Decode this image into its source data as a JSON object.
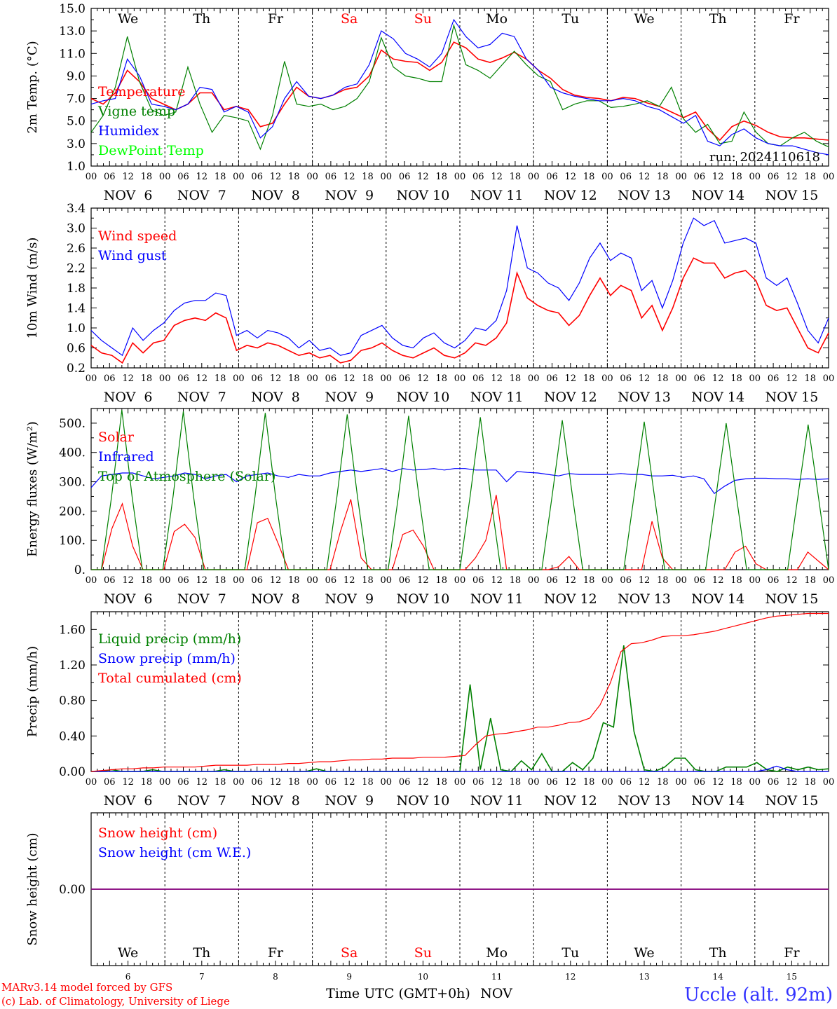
{
  "chart_data": [
    {
      "type": "line",
      "ylabel": "2m Temp. (°C)",
      "ylim": [
        1.0,
        15.0
      ],
      "ytick_labels": [
        "1.0",
        "3.0",
        "5.0",
        "7.0",
        "9.0",
        "11.0",
        "13.0",
        "15.0"
      ],
      "ytick_values": [
        1,
        3,
        5,
        7,
        9,
        11,
        13,
        15
      ],
      "annotation": "run: 2024110618",
      "x_start_hour": 0,
      "x_step_hours": 6,
      "series": [
        {
          "name": "Temperature",
          "color": "#ff0000",
          "values": [
            7.0,
            6.5,
            7.5,
            9.5,
            8.5,
            7.0,
            6.5,
            6.0,
            6.5,
            7.5,
            7.5,
            6.0,
            6.3,
            6.0,
            4.5,
            4.8,
            6.5,
            8.0,
            7.2,
            7.0,
            7.3,
            7.8,
            8.0,
            9.0,
            11.3,
            10.5,
            10.3,
            10.2,
            9.5,
            10.2,
            12.0,
            11.5,
            10.5,
            10.2,
            10.6,
            11.1,
            10.5,
            9.5,
            8.8,
            7.8,
            7.3,
            7.1,
            7.0,
            6.8,
            7.1,
            7.0,
            6.6,
            6.3,
            5.8,
            5.3,
            5.8,
            4.3,
            3.3,
            4.5,
            5.0,
            4.6,
            4.0,
            3.6,
            3.5,
            3.5,
            3.4,
            3.3
          ]
        },
        {
          "name": "Vigne temp",
          "color": "#008000",
          "values": [
            4.0,
            5.5,
            8.0,
            12.5,
            8.5,
            6.0,
            5.5,
            5.8,
            9.8,
            6.5,
            4.0,
            5.5,
            5.3,
            5.0,
            2.5,
            5.5,
            10.3,
            6.5,
            6.3,
            6.5,
            6.0,
            6.3,
            7.0,
            8.5,
            12.4,
            9.8,
            9.0,
            8.8,
            8.5,
            8.5,
            13.5,
            10.0,
            9.5,
            8.8,
            10.0,
            11.2,
            10.0,
            9.0,
            8.5,
            6.0,
            6.5,
            6.8,
            6.8,
            6.2,
            6.3,
            6.5,
            6.8,
            6.3,
            8.0,
            5.2,
            4.0,
            4.7,
            3.0,
            3.2,
            5.8,
            4.0,
            3.0,
            2.8,
            3.5,
            4.0,
            3.2,
            2.7
          ]
        },
        {
          "name": "Humidex",
          "color": "#0000ff",
          "values": [
            6.5,
            6.8,
            7.0,
            10.5,
            9.0,
            6.5,
            6.3,
            6.0,
            6.5,
            8.0,
            7.8,
            5.8,
            6.3,
            5.8,
            3.5,
            4.5,
            7.0,
            8.5,
            7.2,
            7.0,
            7.3,
            8.0,
            8.3,
            10.0,
            13.0,
            12.3,
            11.0,
            10.5,
            9.8,
            11.0,
            14.0,
            12.5,
            11.5,
            11.8,
            12.8,
            12.5,
            10.5,
            9.5,
            8.0,
            7.5,
            7.2,
            7.0,
            6.8,
            6.8,
            7.0,
            6.8,
            6.3,
            6.0,
            5.4,
            4.8,
            5.5,
            3.2,
            2.8,
            3.8,
            4.3,
            3.5,
            3.0,
            2.8,
            2.8,
            2.5,
            2.2,
            2.0
          ]
        },
        {
          "name": "DewPoint Temp",
          "color": "#00ff00",
          "values": []
        }
      ]
    },
    {
      "type": "line",
      "ylabel": "10m Wind (m/s)",
      "ylim": [
        0.2,
        3.4
      ],
      "ytick_labels": [
        "0.2",
        "0.6",
        "1.0",
        "1.4",
        "1.8",
        "2.2",
        "2.6",
        "3.0",
        "3.4"
      ],
      "ytick_values": [
        0.2,
        0.6,
        1.0,
        1.4,
        1.8,
        2.2,
        2.6,
        3.0,
        3.4
      ],
      "x_start_hour": 0,
      "x_step_hours": 6,
      "series": [
        {
          "name": "Wind speed",
          "color": "#ff0000",
          "values": [
            0.65,
            0.5,
            0.45,
            0.3,
            0.7,
            0.5,
            0.7,
            0.75,
            1.05,
            1.15,
            1.2,
            1.15,
            1.3,
            1.2,
            0.55,
            0.65,
            0.6,
            0.7,
            0.65,
            0.55,
            0.45,
            0.5,
            0.4,
            0.45,
            0.3,
            0.35,
            0.55,
            0.6,
            0.7,
            0.55,
            0.45,
            0.4,
            0.5,
            0.6,
            0.45,
            0.4,
            0.5,
            0.7,
            0.65,
            0.8,
            1.1,
            2.1,
            1.6,
            1.45,
            1.35,
            1.3,
            1.05,
            1.25,
            1.65,
            2.0,
            1.65,
            1.85,
            1.75,
            1.2,
            1.45,
            0.95,
            1.4,
            2.0,
            2.4,
            2.3,
            2.3,
            2.0,
            2.1,
            2.15,
            1.95,
            1.45,
            1.35,
            1.4,
            1.0,
            0.6,
            0.5,
            0.9
          ]
        },
        {
          "name": "Wind gust",
          "color": "#0000ff",
          "values": [
            0.95,
            0.75,
            0.6,
            0.45,
            1.0,
            0.75,
            0.95,
            1.1,
            1.35,
            1.5,
            1.55,
            1.55,
            1.7,
            1.65,
            0.85,
            0.95,
            0.8,
            0.95,
            0.9,
            0.8,
            0.6,
            0.75,
            0.55,
            0.6,
            0.45,
            0.5,
            0.85,
            0.95,
            1.05,
            0.8,
            0.65,
            0.6,
            0.8,
            0.9,
            0.7,
            0.6,
            0.75,
            1.0,
            0.95,
            1.15,
            1.75,
            3.05,
            2.2,
            2.1,
            1.9,
            1.8,
            1.55,
            1.9,
            2.4,
            2.7,
            2.35,
            2.5,
            2.4,
            1.75,
            1.95,
            1.4,
            1.95,
            2.7,
            3.2,
            3.05,
            3.15,
            2.7,
            2.75,
            2.8,
            2.7,
            2.0,
            1.85,
            2.0,
            1.5,
            0.95,
            0.7,
            1.2
          ]
        }
      ]
    },
    {
      "type": "line",
      "ylabel": "Energy fluxes (W/m²)",
      "ylim": [
        0,
        550
      ],
      "ytick_labels": [
        "0.",
        "100.",
        "200.",
        "300.",
        "400.",
        "500."
      ],
      "ytick_values": [
        0,
        100,
        200,
        300,
        400,
        500
      ],
      "x_start_hour": 0,
      "x_step_hours": 6,
      "series": [
        {
          "name": "Solar",
          "color": "#ff0000",
          "values": [
            0,
            0,
            140,
            225,
            80,
            0,
            0,
            0,
            130,
            155,
            110,
            0,
            0,
            0,
            0,
            0,
            160,
            175,
            90,
            0,
            0,
            0,
            0,
            0,
            130,
            240,
            40,
            0,
            0,
            0,
            120,
            135,
            80,
            0,
            0,
            0,
            0,
            40,
            100,
            255,
            0,
            0,
            0,
            0,
            0,
            10,
            45,
            0,
            0,
            0,
            0,
            0,
            0,
            0,
            165,
            40,
            0,
            0,
            0,
            0,
            0,
            0,
            60,
            80,
            20,
            0,
            0,
            0,
            0,
            60,
            30,
            0
          ]
        },
        {
          "name": "Infrared",
          "color": "#0000ff",
          "values": [
            280,
            320,
            325,
            330,
            330,
            320,
            310,
            315,
            320,
            330,
            325,
            310,
            320,
            325,
            300,
            320,
            325,
            330,
            320,
            315,
            325,
            320,
            320,
            330,
            335,
            340,
            335,
            340,
            345,
            335,
            345,
            340,
            342,
            345,
            340,
            345,
            345,
            340,
            340,
            340,
            300,
            335,
            332,
            330,
            325,
            320,
            328,
            325,
            325,
            325,
            325,
            328,
            325,
            325,
            320,
            320,
            322,
            315,
            320,
            310,
            260,
            285,
            305,
            310,
            312,
            312,
            310,
            310,
            308,
            310,
            308,
            310
          ]
        },
        {
          "name": "Top of Atmosphere (Solar)",
          "color": "#008000",
          "values": [
            0,
            0,
            250,
            545,
            250,
            0,
            0,
            0,
            250,
            540,
            250,
            0,
            0,
            0,
            0,
            0,
            250,
            535,
            250,
            0,
            0,
            0,
            0,
            0,
            250,
            530,
            250,
            0,
            0,
            0,
            250,
            525,
            250,
            0,
            0,
            0,
            0,
            250,
            520,
            250,
            0,
            0,
            0,
            0,
            0,
            250,
            510,
            250,
            0,
            0,
            0,
            0,
            0,
            250,
            505,
            250,
            0,
            0,
            0,
            0,
            0,
            250,
            500,
            250,
            0,
            0,
            0,
            0,
            0,
            250,
            495,
            250,
            0
          ]
        }
      ]
    },
    {
      "type": "line",
      "ylabel": "Precip (mm/h)",
      "ylim": [
        0.0,
        1.8
      ],
      "ytick_labels": [
        "0.00",
        "0.40",
        "0.80",
        "1.20",
        "1.60"
      ],
      "ytick_values": [
        0,
        0.4,
        0.8,
        1.2,
        1.6
      ],
      "x_start_hour": 0,
      "x_step_hours": 6,
      "series": [
        {
          "name": "Liquid precip (mm/h)",
          "color": "#008000",
          "values": [
            0,
            0,
            0.02,
            0,
            0,
            0,
            0.02,
            0,
            0,
            0,
            0,
            0,
            0,
            0.02,
            0,
            0,
            0,
            0,
            0,
            0,
            0,
            0,
            0.03,
            0,
            0,
            0,
            0,
            0,
            0,
            0,
            0,
            0,
            0,
            0,
            0,
            0,
            0,
            0.98,
            0.02,
            0.6,
            0.02,
            0,
            0.12,
            0.02,
            0.2,
            0,
            0,
            0.1,
            0.02,
            0.15,
            0.55,
            0.5,
            1.42,
            0.45,
            0.02,
            0.0,
            0.05,
            0.15,
            0.15,
            0.02,
            0,
            0,
            0.05,
            0.05,
            0.05,
            0.1,
            0.02,
            0,
            0.05,
            0.02,
            0.05,
            0.02,
            0.03
          ]
        },
        {
          "name": "Snow precip (mm/h)",
          "color": "#0000ff",
          "values": [
            0,
            0,
            0,
            0,
            0,
            0,
            0,
            0,
            0,
            0,
            0,
            0,
            0,
            0,
            0,
            0,
            0,
            0,
            0,
            0,
            0,
            0,
            0,
            0,
            0,
            0,
            0,
            0,
            0,
            0,
            0,
            0,
            0,
            0,
            0,
            0,
            0,
            0,
            0,
            0,
            0,
            0,
            0,
            0,
            0,
            0,
            0,
            0,
            0,
            0,
            0,
            0,
            0,
            0,
            0,
            0,
            0,
            0,
            0,
            0,
            0,
            0,
            0,
            0,
            0,
            0.02,
            0.06,
            0.02,
            0,
            0,
            0,
            0
          ]
        },
        {
          "name": "Total cumulated (cm)",
          "color": "#ff0000",
          "values": [
            0.0,
            0.01,
            0.02,
            0.03,
            0.03,
            0.04,
            0.04,
            0.05,
            0.05,
            0.05,
            0.05,
            0.06,
            0.07,
            0.07,
            0.07,
            0.07,
            0.08,
            0.08,
            0.08,
            0.09,
            0.09,
            0.1,
            0.11,
            0.11,
            0.12,
            0.13,
            0.13,
            0.14,
            0.14,
            0.15,
            0.15,
            0.15,
            0.16,
            0.16,
            0.16,
            0.17,
            0.18,
            0.3,
            0.4,
            0.42,
            0.43,
            0.45,
            0.47,
            0.5,
            0.5,
            0.52,
            0.55,
            0.56,
            0.6,
            0.75,
            1.0,
            1.35,
            1.44,
            1.45,
            1.48,
            1.52,
            1.53,
            1.53,
            1.54,
            1.56,
            1.58,
            1.61,
            1.64,
            1.67,
            1.7,
            1.73,
            1.75,
            1.76,
            1.77,
            1.78,
            1.78,
            1.78
          ]
        }
      ]
    },
    {
      "type": "line",
      "ylabel": "Snow height (cm)",
      "ytick_labels": [
        "0.00"
      ],
      "ytick_values": [
        0
      ],
      "ylim": [
        -1,
        1
      ],
      "x_start_hour": 0,
      "x_step_hours": 6,
      "series": [
        {
          "name": "Snow height (cm)",
          "color": "#ff0000",
          "values": [
            0,
            0
          ]
        },
        {
          "name": "Snow height (cm W.E.)",
          "color": "#0000ff",
          "values": [
            0,
            0
          ]
        }
      ],
      "day_numbers": [
        "6",
        "7",
        "8",
        "9",
        "10",
        "11",
        "12",
        "13",
        "14",
        "15"
      ],
      "xlabel": "Time UTC (GMT+0h)",
      "month_label": "NOV"
    }
  ],
  "weekdays": [
    {
      "label": "We",
      "color": "#000000"
    },
    {
      "label": "Th",
      "color": "#000000"
    },
    {
      "label": "Fr",
      "color": "#000000"
    },
    {
      "label": "Sa",
      "color": "#ff0000"
    },
    {
      "label": "Su",
      "color": "#ff0000"
    },
    {
      "label": "Mo",
      "color": "#000000"
    },
    {
      "label": "Tu",
      "color": "#000000"
    },
    {
      "label": "We",
      "color": "#000000"
    },
    {
      "label": "Th",
      "color": "#000000"
    },
    {
      "label": "Fr",
      "color": "#000000"
    }
  ],
  "date_labels": [
    "NOV  6",
    "NOV  7",
    "NOV  8",
    "NOV  9",
    "NOV 10",
    "NOV 11",
    "NOV 12",
    "NOV 13",
    "NOV 14",
    "NOV 15"
  ],
  "hour_tick_labels": [
    "00",
    "06",
    "12",
    "18"
  ],
  "footer": {
    "model_line": "MARv3.14 model forced by GFS",
    "credit_line": "(c) Lab. of Climatology, University of Liege",
    "location": "Uccle (alt. 92m)"
  }
}
